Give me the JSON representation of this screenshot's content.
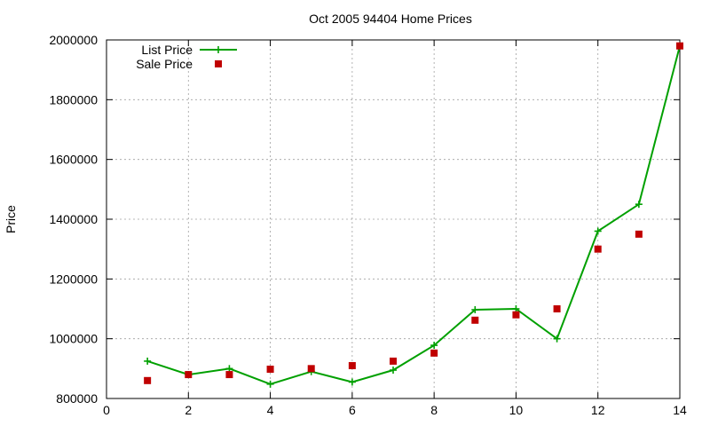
{
  "chart_data": {
    "type": "line",
    "title": "Oct 2005 94404 Home Prices",
    "xlabel": "",
    "ylabel": "Price",
    "xlim": [
      0,
      14
    ],
    "ylim": [
      800000,
      2000000
    ],
    "x_ticks": [
      0,
      2,
      4,
      6,
      8,
      10,
      12,
      14
    ],
    "y_ticks": [
      800000,
      1000000,
      1200000,
      1400000,
      1600000,
      1800000,
      2000000
    ],
    "grid": true,
    "legend_position": "top-left",
    "series": [
      {
        "name": "List Price",
        "style": "line+cross",
        "color": "#00a000",
        "x": [
          1,
          2,
          3,
          4,
          5,
          6,
          7,
          8,
          9,
          10,
          11,
          12,
          13,
          14
        ],
        "y": [
          925000,
          880000,
          900000,
          848000,
          890000,
          855000,
          895000,
          978000,
          1097000,
          1100000,
          1000000,
          1360000,
          1450000,
          1980000
        ]
      },
      {
        "name": "Sale Price",
        "style": "square",
        "color": "#c00000",
        "x": [
          1,
          2,
          3,
          4,
          5,
          6,
          7,
          8,
          9,
          10,
          11,
          12,
          13,
          14
        ],
        "y": [
          860000,
          880000,
          880000,
          898000,
          900000,
          910000,
          925000,
          952000,
          1062000,
          1080000,
          1100000,
          1300000,
          1350000,
          1980000
        ]
      }
    ]
  }
}
